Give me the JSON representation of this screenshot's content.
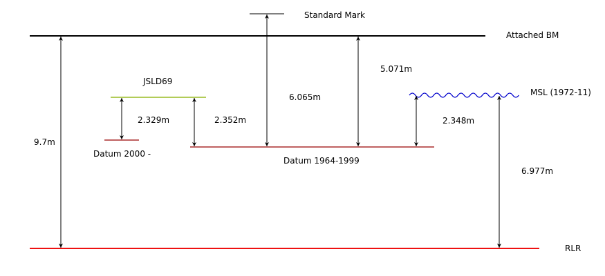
{
  "labels": {
    "standard_mark": "Standard Mark",
    "attached_bm": "Attached BM",
    "jsld69": "JSLD69",
    "msl": "MSL (1972-11)",
    "datum_2000": "Datum 2000 -",
    "datum_1964_1999": "Datum 1964-1999",
    "rlr": "RLR"
  },
  "measurements": {
    "bm_to_rlr": "9.7m",
    "jsld69_to_datum2000": "2.329m",
    "jsld69_to_datum1964": "2.352m",
    "standard_mark_to_datum1964": "6.065m",
    "bm_to_datum1964": "5.071m",
    "msl_to_datum1964": "2.348m",
    "msl_to_rlr": "6.977m"
  },
  "colors": {
    "black_line": "#000000",
    "rlr_line": "#ee1111",
    "datum_line": "#990000",
    "jsld69_line": "#99bb22",
    "msl_wave": "#0000cc"
  }
}
